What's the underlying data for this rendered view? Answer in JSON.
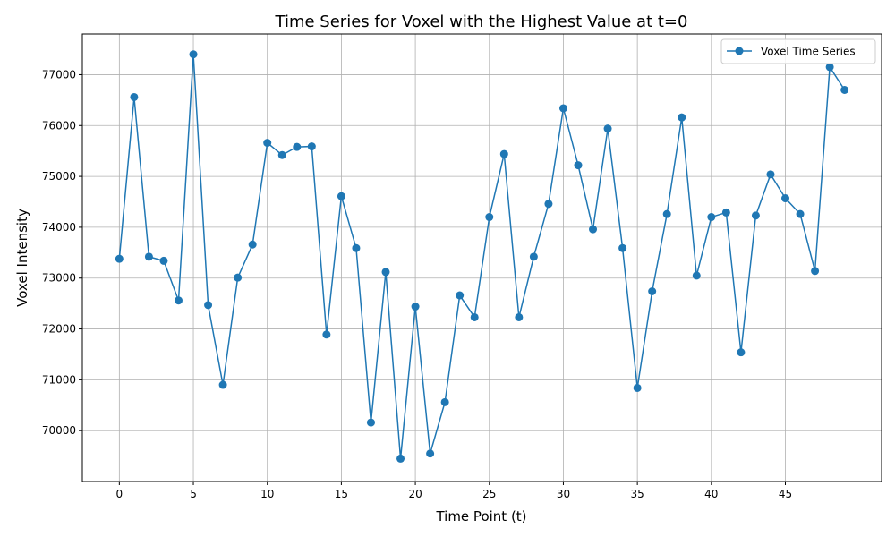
{
  "chart_data": {
    "type": "line",
    "title": "Time Series for Voxel with the Highest Value at t=0",
    "xlabel": "Time Point (t)",
    "ylabel": "Voxel Intensity",
    "xlim": [
      -2.5,
      51.5
    ],
    "ylim": [
      69000,
      77800
    ],
    "xticks": [
      0,
      5,
      10,
      15,
      20,
      25,
      30,
      35,
      40,
      45
    ],
    "yticks": [
      70000,
      71000,
      72000,
      73000,
      74000,
      75000,
      76000,
      77000
    ],
    "grid": true,
    "legend_position": "top-right",
    "color": "#1f77b4",
    "series": [
      {
        "name": "Voxel Time Series",
        "x": [
          0,
          1,
          2,
          3,
          4,
          5,
          6,
          7,
          8,
          9,
          10,
          11,
          12,
          13,
          14,
          15,
          16,
          17,
          18,
          19,
          20,
          21,
          22,
          23,
          24,
          25,
          26,
          27,
          28,
          29,
          30,
          31,
          32,
          33,
          34,
          35,
          36,
          37,
          38,
          39,
          40,
          41,
          42,
          43,
          44,
          45,
          46,
          47,
          48,
          49
        ],
        "values": [
          73380,
          76560,
          73420,
          73340,
          72560,
          77400,
          72470,
          70900,
          73010,
          73660,
          75660,
          75420,
          75580,
          75590,
          71890,
          74610,
          73590,
          70160,
          73120,
          69450,
          72440,
          69550,
          70560,
          72660,
          72230,
          74200,
          75440,
          72230,
          73420,
          74460,
          76340,
          75220,
          73960,
          75940,
          73590,
          70840,
          72740,
          74260,
          76160,
          73050,
          74200,
          74290,
          71540,
          74230,
          75040,
          74570,
          74260,
          73140,
          77150,
          76700
        ]
      }
    ]
  }
}
